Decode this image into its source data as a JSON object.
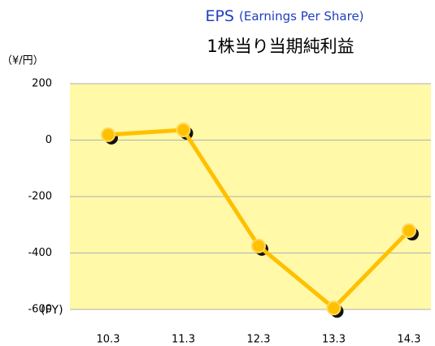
{
  "chart_data": {
    "type": "line",
    "title": "EPS",
    "title_note": "(Earnings Per Share)",
    "subtitle": "1株当り当期純利益",
    "y_unit": "（¥/円）",
    "x_unit": "(FY)",
    "categories": [
      "10.3",
      "11.3",
      "12.3",
      "13.3",
      "14.3"
    ],
    "series": [
      {
        "color": "#ffc000",
        "values": [
          19,
          36,
          -375,
          -595,
          -321
        ]
      }
    ],
    "ylim": [
      -600,
      200
    ],
    "yticks": [
      -600,
      -400,
      -200,
      0,
      200
    ],
    "grid": true
  }
}
